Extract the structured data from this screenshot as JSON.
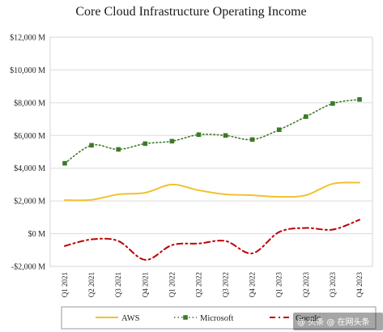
{
  "chart_data": {
    "type": "line",
    "title": "Core Cloud Infrastructure Operating Income",
    "xlabel": "",
    "ylabel": "",
    "categories": [
      "Q1 2021",
      "Q2 2021",
      "Q3 2021",
      "Q4 2021",
      "Q1 2022",
      "Q2 2022",
      "Q3 2022",
      "Q4 2022",
      "Q1 2023",
      "Q2 2023",
      "Q3 2023",
      "Q4 2023"
    ],
    "ylim": [
      -2000,
      12000
    ],
    "yticks": [
      {
        "value": 12000,
        "label": "$12,000 M"
      },
      {
        "value": 10000,
        "label": "$10,000 M"
      },
      {
        "value": 8000,
        "label": "$8,000 M"
      },
      {
        "value": 6000,
        "label": "$6,000 M"
      },
      {
        "value": 4000,
        "label": "$4,000 M"
      },
      {
        "value": 2000,
        "label": "$2,000 M"
      },
      {
        "value": 0,
        "label": "$0 M"
      },
      {
        "value": -2000,
        "label": "-$2,000 M"
      }
    ],
    "grid": "horizontal",
    "legend_position": "bottom",
    "series": [
      {
        "name": "AWS",
        "color": "#f2c12e",
        "style": "solid",
        "values": [
          2050,
          2070,
          2400,
          2500,
          3000,
          2650,
          2400,
          2350,
          2250,
          2350,
          3050,
          3120
        ]
      },
      {
        "name": "Microsoft",
        "color": "#3c7a28",
        "style": "dotted-markers",
        "values": [
          4300,
          5400,
          5150,
          5500,
          5650,
          6050,
          6000,
          5750,
          6350,
          7150,
          7950,
          8200
        ]
      },
      {
        "name": "Google",
        "color": "#c00000",
        "style": "dash-dot",
        "values": [
          -750,
          -350,
          -450,
          -1600,
          -700,
          -600,
          -450,
          -1200,
          100,
          350,
          250,
          850
        ]
      }
    ]
  },
  "watermark": "@ 头条 @ 在网头条"
}
